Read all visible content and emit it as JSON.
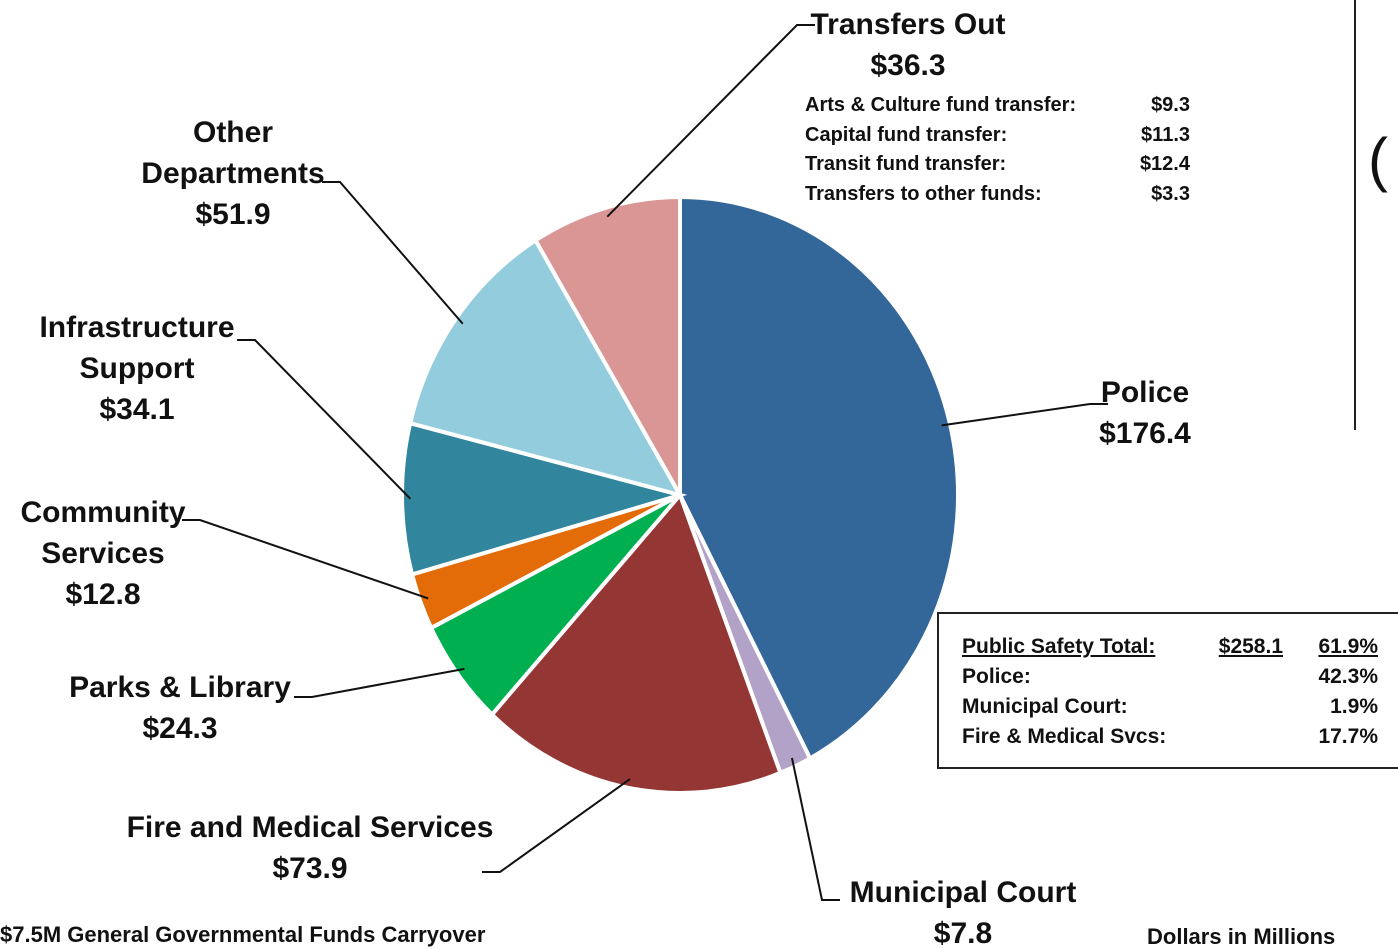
{
  "chart_data": {
    "type": "pie",
    "categories": [
      "Police",
      "Municipal Court",
      "Fire and Medical Services",
      "Parks & Library",
      "Community Services",
      "Infrastructure Support",
      "Other Departments",
      "Transfers Out"
    ],
    "values": [
      176.4,
      7.8,
      73.9,
      24.3,
      12.8,
      34.1,
      51.9,
      36.3
    ],
    "value_labels": [
      "$176.4",
      "$7.8",
      "$73.9",
      "$24.3",
      "$12.8",
      "$34.1",
      "$51.9",
      "$36.3"
    ],
    "colors": [
      "#336699",
      "#b3a2c7",
      "#933634",
      "#00b050",
      "#e36c09",
      "#31859c",
      "#93cddd",
      "#d99694"
    ],
    "transfer_details": [
      [
        "Arts & Culture fund transfer:",
        "$9.3"
      ],
      [
        "Capital fund transfer:",
        "$11.3"
      ],
      [
        "Transit fund transfer:",
        "$12.4"
      ],
      [
        "Transfers to other funds:",
        "$3.3"
      ]
    ],
    "public_safety": [
      [
        "Public Safety Total:",
        "$258.1",
        "61.9%"
      ],
      [
        "Police:",
        "42.3%"
      ],
      [
        "Municipal Court:",
        "1.9%"
      ],
      [
        "Fire & Medical Svcs:",
        "17.7%"
      ]
    ],
    "footnote": "$7.5M General Governmental Funds Carryover",
    "units_note": "Dollars in Millions",
    "side_panel": "("
  }
}
